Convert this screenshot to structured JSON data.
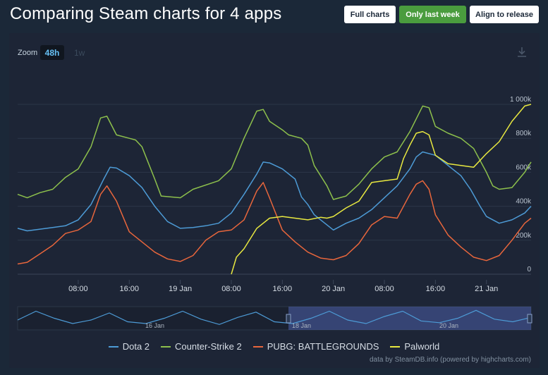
{
  "header": {
    "title": "Comparing Steam charts for 4 apps",
    "buttons": [
      {
        "label": "Full charts",
        "style": "white"
      },
      {
        "label": "Only last week",
        "style": "green"
      },
      {
        "label": "Align to release",
        "style": "white"
      }
    ]
  },
  "zoom": {
    "label": "Zoom",
    "options": [
      {
        "label": "48h",
        "active": true
      },
      {
        "label": "1w",
        "active": false
      }
    ]
  },
  "icons": {
    "download": "download-icon"
  },
  "colors": {
    "background": "#1b2838",
    "panel": "#1d2536",
    "accent_green": "#4a9c3e",
    "gridline": "#2c3648"
  },
  "credit": "data by SteamDB.info (powered by highcharts.com)",
  "chart_data": {
    "type": "line",
    "y_ticks": [
      "0",
      "200k",
      "400k",
      "600k",
      "800k",
      "1 000k"
    ],
    "ylim": [
      0,
      1000000
    ],
    "grid": true,
    "x_ticks": [
      "08:00",
      "16:00",
      "19 Jan",
      "08:00",
      "16:00",
      "20 Jan",
      "08:00",
      "16:00",
      "21 Jan"
    ],
    "x_tick_hours": [
      8,
      16,
      24,
      32,
      40,
      48,
      56,
      64,
      72
    ],
    "xlim_hours": [
      -1.5,
      79
    ],
    "x_unit": "hours from 18 Jan 00:00",
    "legend_position": "bottom",
    "navigator_labels": [
      "16 Jan",
      "18 Jan",
      "20 Jan"
    ],
    "series": [
      {
        "name": "Dota 2",
        "color": "#4d9bd6",
        "points": [
          [
            -1.5,
            270000
          ],
          [
            0,
            255000
          ],
          [
            2,
            265000
          ],
          [
            4,
            275000
          ],
          [
            6,
            285000
          ],
          [
            8,
            320000
          ],
          [
            10,
            410000
          ],
          [
            12,
            560000
          ],
          [
            13,
            630000
          ],
          [
            14,
            625000
          ],
          [
            16,
            580000
          ],
          [
            18,
            510000
          ],
          [
            20,
            400000
          ],
          [
            22,
            310000
          ],
          [
            24,
            270000
          ],
          [
            26,
            275000
          ],
          [
            28,
            285000
          ],
          [
            30,
            300000
          ],
          [
            32,
            360000
          ],
          [
            34,
            470000
          ],
          [
            36,
            590000
          ],
          [
            37,
            660000
          ],
          [
            38,
            655000
          ],
          [
            40,
            620000
          ],
          [
            42,
            560000
          ],
          [
            43,
            455000
          ],
          [
            44,
            410000
          ],
          [
            45,
            350000
          ],
          [
            46,
            320000
          ],
          [
            47,
            290000
          ],
          [
            48,
            260000
          ],
          [
            50,
            300000
          ],
          [
            52,
            330000
          ],
          [
            54,
            380000
          ],
          [
            56,
            450000
          ],
          [
            58,
            520000
          ],
          [
            60,
            620000
          ],
          [
            61,
            690000
          ],
          [
            62,
            720000
          ],
          [
            64,
            700000
          ],
          [
            66,
            640000
          ],
          [
            68,
            580000
          ],
          [
            69.5,
            500000
          ],
          [
            71,
            400000
          ],
          [
            72,
            340000
          ],
          [
            74,
            300000
          ],
          [
            76,
            320000
          ],
          [
            78,
            360000
          ],
          [
            79,
            400000
          ]
        ]
      },
      {
        "name": "Counter-Strike 2",
        "color": "#8dc04c",
        "points": [
          [
            -1.5,
            470000
          ],
          [
            0,
            450000
          ],
          [
            2,
            480000
          ],
          [
            4,
            500000
          ],
          [
            6,
            570000
          ],
          [
            8,
            620000
          ],
          [
            10,
            750000
          ],
          [
            11.5,
            920000
          ],
          [
            12.5,
            930000
          ],
          [
            14,
            820000
          ],
          [
            16,
            800000
          ],
          [
            17,
            790000
          ],
          [
            18,
            750000
          ],
          [
            20,
            560000
          ],
          [
            21,
            460000
          ],
          [
            24,
            450000
          ],
          [
            26,
            500000
          ],
          [
            30,
            550000
          ],
          [
            32,
            620000
          ],
          [
            34,
            800000
          ],
          [
            36,
            960000
          ],
          [
            37,
            970000
          ],
          [
            38,
            900000
          ],
          [
            40,
            850000
          ],
          [
            41,
            820000
          ],
          [
            43,
            800000
          ],
          [
            44,
            760000
          ],
          [
            45,
            640000
          ],
          [
            47,
            520000
          ],
          [
            48,
            440000
          ],
          [
            50,
            460000
          ],
          [
            52,
            530000
          ],
          [
            54,
            620000
          ],
          [
            56,
            690000
          ],
          [
            58,
            720000
          ],
          [
            60,
            840000
          ],
          [
            62,
            990000
          ],
          [
            63,
            980000
          ],
          [
            64,
            870000
          ],
          [
            66,
            830000
          ],
          [
            68,
            800000
          ],
          [
            70,
            740000
          ],
          [
            72,
            600000
          ],
          [
            73,
            520000
          ],
          [
            74,
            500000
          ],
          [
            76,
            510000
          ],
          [
            78,
            600000
          ],
          [
            79,
            660000
          ]
        ]
      },
      {
        "name": "PUBG: BATTLEGROUNDS",
        "color": "#e8663c",
        "points": [
          [
            -1.5,
            60000
          ],
          [
            0,
            70000
          ],
          [
            2,
            120000
          ],
          [
            4,
            170000
          ],
          [
            6,
            240000
          ],
          [
            8,
            260000
          ],
          [
            10,
            310000
          ],
          [
            11.5,
            470000
          ],
          [
            12.5,
            520000
          ],
          [
            14,
            430000
          ],
          [
            16,
            250000
          ],
          [
            18,
            190000
          ],
          [
            20,
            130000
          ],
          [
            22,
            90000
          ],
          [
            24,
            75000
          ],
          [
            26,
            110000
          ],
          [
            28,
            200000
          ],
          [
            30,
            250000
          ],
          [
            32,
            260000
          ],
          [
            34,
            320000
          ],
          [
            36,
            490000
          ],
          [
            37,
            540000
          ],
          [
            38,
            450000
          ],
          [
            40,
            260000
          ],
          [
            42,
            190000
          ],
          [
            44,
            130000
          ],
          [
            46,
            95000
          ],
          [
            48,
            85000
          ],
          [
            50,
            110000
          ],
          [
            52,
            180000
          ],
          [
            54,
            290000
          ],
          [
            56,
            340000
          ],
          [
            58,
            330000
          ],
          [
            60,
            470000
          ],
          [
            61,
            530000
          ],
          [
            62,
            550000
          ],
          [
            63,
            500000
          ],
          [
            64,
            350000
          ],
          [
            66,
            230000
          ],
          [
            68,
            160000
          ],
          [
            70,
            100000
          ],
          [
            72,
            80000
          ],
          [
            74,
            110000
          ],
          [
            76,
            200000
          ],
          [
            78,
            300000
          ],
          [
            79,
            330000
          ]
        ]
      },
      {
        "name": "Palworld",
        "color": "#e8e840",
        "points": [
          [
            32,
            0
          ],
          [
            32.8,
            100000
          ],
          [
            34,
            150000
          ],
          [
            36,
            270000
          ],
          [
            38,
            330000
          ],
          [
            40,
            340000
          ],
          [
            42,
            330000
          ],
          [
            44,
            320000
          ],
          [
            46,
            335000
          ],
          [
            47,
            330000
          ],
          [
            48,
            340000
          ],
          [
            50,
            390000
          ],
          [
            52,
            430000
          ],
          [
            54,
            540000
          ],
          [
            56,
            550000
          ],
          [
            58,
            560000
          ],
          [
            59,
            680000
          ],
          [
            60,
            760000
          ],
          [
            61,
            830000
          ],
          [
            62,
            840000
          ],
          [
            63,
            820000
          ],
          [
            64,
            700000
          ],
          [
            66,
            650000
          ],
          [
            68,
            640000
          ],
          [
            70,
            630000
          ],
          [
            72,
            710000
          ],
          [
            74,
            780000
          ],
          [
            76,
            900000
          ],
          [
            78,
            990000
          ],
          [
            79,
            1000000
          ]
        ]
      }
    ],
    "navigator_series": [
      [
        0,
        0.4
      ],
      [
        1,
        0.9
      ],
      [
        2,
        0.5
      ],
      [
        3,
        0.2
      ],
      [
        4,
        0.4
      ],
      [
        5,
        0.8
      ],
      [
        6,
        0.3
      ],
      [
        7,
        0.2
      ],
      [
        8,
        0.5
      ],
      [
        9,
        0.9
      ],
      [
        10,
        0.45
      ],
      [
        11,
        0.15
      ],
      [
        12,
        0.55
      ],
      [
        13,
        0.85
      ],
      [
        14,
        0.3
      ],
      [
        15,
        0.2
      ],
      [
        16,
        0.5
      ],
      [
        17,
        0.9
      ],
      [
        18,
        0.4
      ],
      [
        19,
        0.2
      ],
      [
        20,
        0.6
      ],
      [
        21,
        0.9
      ],
      [
        22,
        0.35
      ],
      [
        23,
        0.25
      ],
      [
        24,
        0.5
      ],
      [
        25,
        0.95
      ],
      [
        26,
        0.45
      ],
      [
        27,
        0.3
      ],
      [
        28,
        0.55
      ]
    ]
  },
  "legend": {
    "items": [
      {
        "label": "Dota 2",
        "color": "#4d9bd6"
      },
      {
        "label": "Counter-Strike 2",
        "color": "#8dc04c"
      },
      {
        "label": "PUBG: BATTLEGROUNDS",
        "color": "#e8663c"
      },
      {
        "label": "Palworld",
        "color": "#e8e840"
      }
    ]
  }
}
